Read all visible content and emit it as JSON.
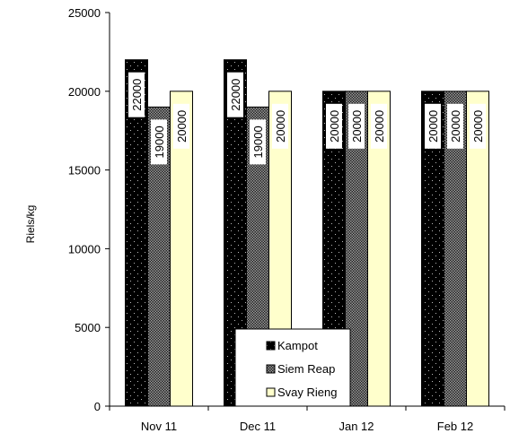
{
  "chart_data": {
    "type": "bar",
    "categories": [
      "Nov 11",
      "Dec 11",
      "Jan 12",
      "Feb 12"
    ],
    "series": [
      {
        "name": "Kampot",
        "values": [
          22000,
          22000,
          20000,
          20000
        ],
        "color": "#000000",
        "pattern": "dark-dots"
      },
      {
        "name": "Siem Reap",
        "values": [
          19000,
          19000,
          20000,
          20000
        ],
        "color": "#000000",
        "pattern": "checker"
      },
      {
        "name": "Svay Rieng",
        "values": [
          20000,
          20000,
          20000,
          20000
        ],
        "color": "#ffffcc",
        "pattern": "solid"
      }
    ],
    "ylabel": "Riels/kg",
    "ylim": [
      0,
      25000
    ],
    "yticks": [
      0,
      5000,
      10000,
      15000,
      20000,
      25000
    ],
    "data_labels": true,
    "legend_position": "bottom-center-inside",
    "grid": false
  }
}
